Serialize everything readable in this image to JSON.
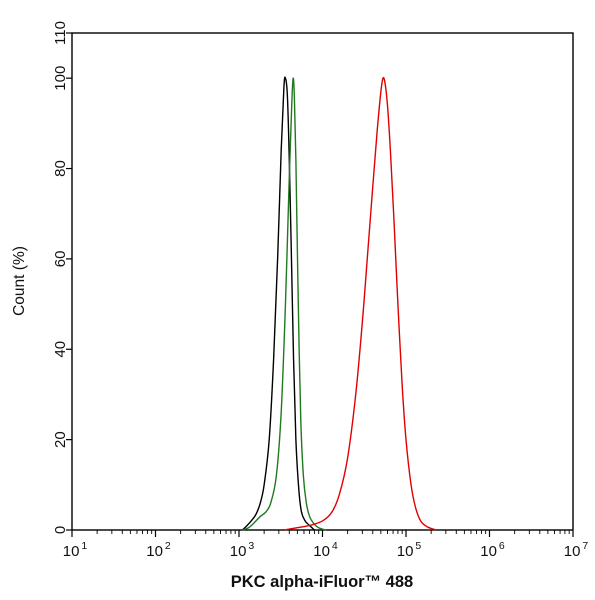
{
  "chart_data": {
    "type": "line",
    "xlabel": "PKC alpha-iFluor™ 488",
    "ylabel": "Count  (%)",
    "xscale": "log",
    "xlim": [
      10,
      10000000
    ],
    "ylim": [
      0,
      110
    ],
    "x_ticks": [
      {
        "base": "10",
        "exp": "1"
      },
      {
        "base": "10",
        "exp": "2"
      },
      {
        "base": "10",
        "exp": "3"
      },
      {
        "base": "10",
        "exp": "4"
      },
      {
        "base": "10",
        "exp": "5"
      },
      {
        "base": "10",
        "exp": "6"
      },
      {
        "base": "10",
        "exp": "7"
      }
    ],
    "y_ticks": [
      "0",
      "20",
      "40",
      "60",
      "80",
      "100",
      "110"
    ],
    "grid": false,
    "legend": "none",
    "series": [
      {
        "color": "#000000",
        "x": [
          1100,
          1250,
          1400,
          1600,
          1800,
          2000,
          2300,
          2600,
          2900,
          3200,
          3450,
          3600,
          3800,
          4000,
          4250,
          4500,
          4800,
          5200,
          5600,
          6200,
          7000,
          8000
        ],
        "y": [
          0,
          1,
          2,
          3.5,
          6,
          10,
          20,
          38,
          60,
          84,
          98,
          100,
          96,
          82,
          60,
          38,
          20,
          9,
          4,
          2,
          1,
          0
        ]
      },
      {
        "color": "#1f7a1f",
        "x": [
          1100,
          1300,
          1500,
          1800,
          2100,
          2400,
          2800,
          3200,
          3600,
          4000,
          4300,
          4450,
          4600,
          4800,
          5000,
          5250,
          5500,
          5900,
          6400,
          7000,
          7800,
          9000,
          11000
        ],
        "y": [
          0,
          0.5,
          1.5,
          3,
          4,
          6,
          12,
          26,
          50,
          78,
          95,
          100,
          96,
          82,
          62,
          40,
          24,
          12,
          6,
          3,
          1.5,
          0.5,
          0
        ]
      },
      {
        "color": "#e00000",
        "x": [
          3500,
          5000,
          7000,
          10000,
          13000,
          16000,
          20000,
          25000,
          30000,
          35000,
          40000,
          45000,
          50000,
          53000,
          56000,
          60000,
          65000,
          72000,
          80000,
          90000,
          100000,
          115000,
          130000,
          150000,
          180000,
          230000
        ],
        "y": [
          0,
          0.5,
          1,
          2,
          4,
          8,
          16,
          30,
          46,
          62,
          76,
          88,
          97,
          100,
          99,
          94,
          84,
          68,
          50,
          32,
          20,
          10,
          5,
          2,
          0.7,
          0
        ]
      }
    ]
  }
}
